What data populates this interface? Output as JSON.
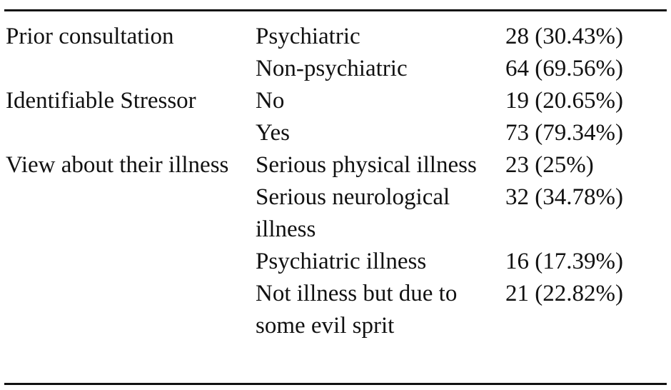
{
  "table": {
    "rows": [
      {
        "category": "Prior consultation",
        "subcategory": "Psychiatric",
        "value": "28 (30.43%)"
      },
      {
        "category": "",
        "subcategory": "Non-psychiatric",
        "value": "64 (69.56%)"
      },
      {
        "category": "Identifiable Stressor",
        "subcategory": "No",
        "value": "19 (20.65%)"
      },
      {
        "category": "",
        "subcategory": "Yes",
        "value": "73 (79.34%)"
      },
      {
        "category": "View about their illness",
        "subcategory": "Serious physical illness",
        "value": "23 (25%)"
      },
      {
        "category": "",
        "subcategory": "Serious neurological illness",
        "value": "32 (34.78%)"
      },
      {
        "category": "",
        "subcategory": "Psychiatric illness",
        "value": "16 (17.39%)"
      },
      {
        "category": "",
        "subcategory": "Not illness but due to some evil sprit",
        "value": "21 (22.82%)"
      }
    ]
  }
}
